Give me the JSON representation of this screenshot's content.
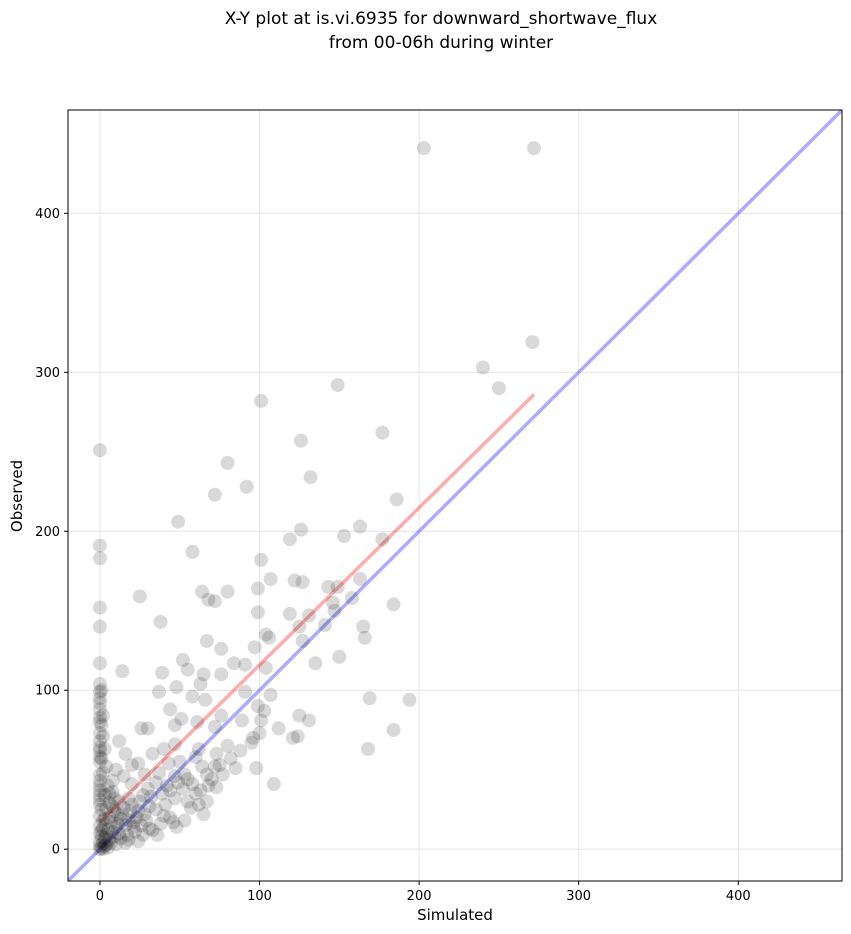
{
  "chart_data": {
    "type": "scatter",
    "title_line1": "X-Y plot at is.vi.6935 for downward_shortwave_flux",
    "title_line2": "from 00-06h during winter",
    "xlabel": "Simulated",
    "ylabel": "Observed",
    "xlim": [
      -20,
      465
    ],
    "ylim": [
      -20,
      465
    ],
    "xticks": [
      0,
      100,
      200,
      300,
      400
    ],
    "yticks": [
      0,
      100,
      200,
      300,
      400
    ],
    "grid": true,
    "colors": {
      "points": "#000000",
      "one_to_one_line": "#0000ff",
      "fit_line": "#ff0000"
    },
    "one_to_one_line": {
      "x": [
        -20,
        465
      ],
      "y": [
        -20,
        465
      ]
    },
    "fit_line": {
      "x": [
        0,
        272
      ],
      "y": [
        17,
        286
      ]
    },
    "points": [
      [
        203,
        441
      ],
      [
        272,
        441
      ],
      [
        271,
        319
      ],
      [
        240,
        303
      ],
      [
        250,
        290
      ],
      [
        149,
        292
      ],
      [
        101,
        282
      ],
      [
        177,
        262
      ],
      [
        126,
        257
      ],
      [
        0,
        251
      ],
      [
        80,
        243
      ],
      [
        132,
        234
      ],
      [
        92,
        228
      ],
      [
        72,
        223
      ],
      [
        186,
        220
      ],
      [
        49,
        206
      ],
      [
        126,
        201
      ],
      [
        163,
        203
      ],
      [
        153,
        197
      ],
      [
        177,
        195
      ],
      [
        119,
        195
      ],
      [
        0,
        191
      ],
      [
        58,
        187
      ],
      [
        0,
        183
      ],
      [
        101,
        182
      ],
      [
        163,
        170
      ],
      [
        122,
        169
      ],
      [
        127,
        168
      ],
      [
        107,
        170
      ],
      [
        143,
        165
      ],
      [
        99,
        164
      ],
      [
        149,
        165
      ],
      [
        64,
        162
      ],
      [
        80,
        162
      ],
      [
        25,
        159
      ],
      [
        68,
        157
      ],
      [
        72,
        156
      ],
      [
        158,
        158
      ],
      [
        184,
        154
      ],
      [
        146,
        155
      ],
      [
        119,
        148
      ],
      [
        99,
        149
      ],
      [
        147,
        150
      ],
      [
        131,
        147
      ],
      [
        0,
        152
      ],
      [
        38,
        143
      ],
      [
        0,
        140
      ],
      [
        125,
        140
      ],
      [
        141,
        141
      ],
      [
        165,
        140
      ],
      [
        104,
        135
      ],
      [
        106,
        133
      ],
      [
        166,
        133
      ],
      [
        67,
        131
      ],
      [
        127,
        131
      ],
      [
        76,
        126
      ],
      [
        97,
        127
      ],
      [
        135,
        117
      ],
      [
        0,
        117
      ],
      [
        52,
        119
      ],
      [
        84,
        117
      ],
      [
        91,
        116
      ],
      [
        14,
        112
      ],
      [
        39,
        111
      ],
      [
        55,
        113
      ],
      [
        76,
        110
      ],
      [
        65,
        110
      ],
      [
        104,
        114
      ],
      [
        150,
        121
      ],
      [
        0,
        104
      ],
      [
        0,
        99
      ],
      [
        0,
        95
      ],
      [
        48,
        102
      ],
      [
        58,
        96
      ],
      [
        37,
        99
      ],
      [
        63,
        104
      ],
      [
        169,
        95
      ],
      [
        194,
        94
      ],
      [
        107,
        97
      ],
      [
        91,
        99
      ],
      [
        66,
        94
      ],
      [
        0,
        83
      ],
      [
        0,
        80
      ],
      [
        51,
        82
      ],
      [
        44,
        88
      ],
      [
        103,
        87
      ],
      [
        101,
        81
      ],
      [
        99,
        90
      ],
      [
        89,
        81
      ],
      [
        76,
        84
      ],
      [
        125,
        84
      ],
      [
        131,
        81
      ],
      [
        0,
        73
      ],
      [
        0,
        68
      ],
      [
        12,
        68
      ],
      [
        26,
        76
      ],
      [
        30,
        76
      ],
      [
        47,
        78
      ],
      [
        61,
        80
      ],
      [
        72,
        77
      ],
      [
        100,
        73
      ],
      [
        112,
        76
      ],
      [
        124,
        71
      ],
      [
        184,
        75
      ],
      [
        0,
        62
      ],
      [
        16,
        60
      ],
      [
        40,
        63
      ],
      [
        47,
        66
      ],
      [
        62,
        63
      ],
      [
        73,
        60
      ],
      [
        80,
        65
      ],
      [
        96,
        70
      ],
      [
        121,
        70
      ],
      [
        168,
        63
      ],
      [
        0,
        55
      ],
      [
        20,
        53
      ],
      [
        24,
        54
      ],
      [
        33,
        60
      ],
      [
        43,
        54
      ],
      [
        50,
        55
      ],
      [
        60,
        58
      ],
      [
        64,
        52
      ],
      [
        72,
        52
      ],
      [
        85,
        51
      ],
      [
        98,
        51
      ],
      [
        0,
        47
      ],
      [
        10,
        50
      ],
      [
        15,
        46
      ],
      [
        28,
        47
      ],
      [
        37,
        48
      ],
      [
        47,
        46
      ],
      [
        55,
        44
      ],
      [
        67,
        47
      ],
      [
        77,
        47
      ],
      [
        109,
        41
      ],
      [
        0,
        40
      ],
      [
        8,
        43
      ],
      [
        20,
        41
      ],
      [
        30,
        38
      ],
      [
        42,
        40
      ],
      [
        52,
        38
      ],
      [
        60,
        35
      ],
      [
        68,
        40
      ],
      [
        73,
        39
      ],
      [
        0,
        34
      ],
      [
        6,
        35
      ],
      [
        12,
        30
      ],
      [
        18,
        32
      ],
      [
        25,
        30
      ],
      [
        32,
        33
      ],
      [
        39,
        35
      ],
      [
        47,
        32
      ],
      [
        55,
        30
      ],
      [
        62,
        28
      ],
      [
        67,
        30
      ],
      [
        0,
        28
      ],
      [
        4,
        26
      ],
      [
        9,
        24
      ],
      [
        14,
        22
      ],
      [
        19,
        24
      ],
      [
        23,
        20
      ],
      [
        28,
        22
      ],
      [
        35,
        25
      ],
      [
        44,
        20
      ],
      [
        53,
        18
      ],
      [
        65,
        22
      ],
      [
        0,
        21
      ],
      [
        3,
        19
      ],
      [
        7,
        17
      ],
      [
        11,
        16
      ],
      [
        16,
        15
      ],
      [
        21,
        14
      ],
      [
        26,
        15
      ],
      [
        31,
        13
      ],
      [
        38,
        16
      ],
      [
        46,
        17
      ],
      [
        0,
        15
      ],
      [
        2,
        13
      ],
      [
        5,
        12
      ],
      [
        8,
        11
      ],
      [
        12,
        10
      ],
      [
        17,
        9
      ],
      [
        22,
        11
      ],
      [
        27,
        9
      ],
      [
        33,
        12
      ],
      [
        0,
        10
      ],
      [
        1,
        8
      ],
      [
        3,
        7
      ],
      [
        6,
        6
      ],
      [
        9,
        8
      ],
      [
        13,
        7
      ],
      [
        18,
        6
      ],
      [
        0,
        5
      ],
      [
        2,
        4
      ],
      [
        4,
        3
      ],
      [
        7,
        4
      ],
      [
        10,
        3
      ],
      [
        0,
        2
      ],
      [
        1,
        1
      ],
      [
        3,
        2
      ],
      [
        5,
        1
      ],
      [
        0,
        0
      ],
      [
        2,
        0
      ],
      [
        0,
        31
      ],
      [
        0,
        37
      ],
      [
        0,
        43
      ],
      [
        0,
        58
      ],
      [
        0,
        64
      ],
      [
        0,
        88
      ],
      [
        0,
        92
      ],
      [
        1,
        12
      ],
      [
        1,
        25
      ],
      [
        2,
        18
      ],
      [
        4,
        9
      ],
      [
        6,
        20
      ],
      [
        8,
        27
      ],
      [
        10,
        14
      ],
      [
        13,
        19
      ],
      [
        15,
        26
      ],
      [
        18,
        18
      ],
      [
        20,
        28
      ],
      [
        24,
        24
      ],
      [
        27,
        34
      ],
      [
        31,
        27
      ],
      [
        35,
        42
      ],
      [
        41,
        28
      ],
      [
        44,
        37
      ],
      [
        49,
        42
      ],
      [
        53,
        47
      ],
      [
        58,
        41
      ],
      [
        63,
        37
      ],
      [
        70,
        44
      ],
      [
        75,
        53
      ],
      [
        82,
        57
      ],
      [
        88,
        62
      ],
      [
        95,
        67
      ],
      [
        57,
        26
      ],
      [
        48,
        14
      ],
      [
        40,
        21
      ],
      [
        36,
        9
      ],
      [
        29,
        18
      ],
      [
        24,
        5
      ],
      [
        21,
        17
      ],
      [
        16,
        4
      ],
      [
        11,
        22
      ],
      [
        9,
        32
      ],
      [
        6,
        29
      ],
      [
        3,
        34
      ],
      [
        5,
        40
      ],
      [
        8,
        36
      ],
      [
        2,
        48
      ],
      [
        4,
        52
      ],
      [
        1,
        57
      ],
      [
        3,
        63
      ],
      [
        2,
        71
      ],
      [
        1,
        78
      ],
      [
        2,
        84
      ],
      [
        1,
        100
      ]
    ]
  }
}
